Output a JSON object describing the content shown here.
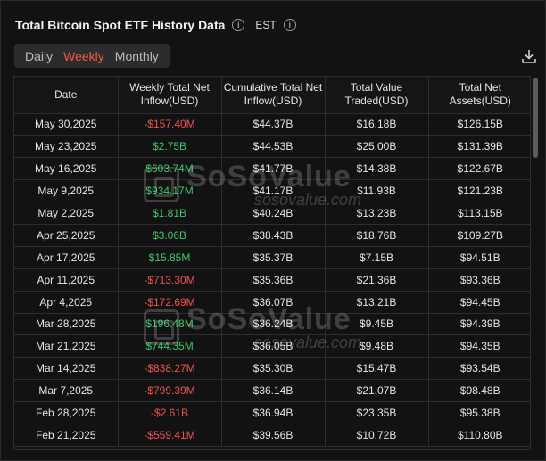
{
  "header": {
    "title": "Total Bitcoin Spot ETF History Data",
    "timezone": "EST"
  },
  "tabs": [
    {
      "label": "Daily",
      "active": false
    },
    {
      "label": "Weekly",
      "active": true
    },
    {
      "label": "Monthly",
      "active": false
    }
  ],
  "table": {
    "columns": [
      "Date",
      "Weekly Total Net Inflow(USD)",
      "Cumulative Total Net Inflow(USD)",
      "Total Value Traded(USD)",
      "Total Net Assets(USD)"
    ],
    "rows": [
      [
        "May 30,2025",
        "-$157.40M",
        "$44.37B",
        "$16.18B",
        "$126.15B"
      ],
      [
        "May 23,2025",
        "$2.75B",
        "$44.53B",
        "$25.00B",
        "$131.39B"
      ],
      [
        "May 16,2025",
        "$603.74M",
        "$41.77B",
        "$14.38B",
        "$122.67B"
      ],
      [
        "May 9,2025",
        "$934.17M",
        "$41.17B",
        "$11.93B",
        "$121.23B"
      ],
      [
        "May 2,2025",
        "$1.81B",
        "$40.24B",
        "$13.23B",
        "$113.15B"
      ],
      [
        "Apr 25,2025",
        "$3.06B",
        "$38.43B",
        "$18.76B",
        "$109.27B"
      ],
      [
        "Apr 17,2025",
        "$15.85M",
        "$35.37B",
        "$7.15B",
        "$94.51B"
      ],
      [
        "Apr 11,2025",
        "-$713.30M",
        "$35.36B",
        "$21.36B",
        "$93.36B"
      ],
      [
        "Apr 4,2025",
        "-$172.69M",
        "$36.07B",
        "$13.21B",
        "$94.45B"
      ],
      [
        "Mar 28,2025",
        "$196.48M",
        "$36.24B",
        "$9.45B",
        "$94.39B"
      ],
      [
        "Mar 21,2025",
        "$744.35M",
        "$36.05B",
        "$9.48B",
        "$94.35B"
      ],
      [
        "Mar 14,2025",
        "-$838.27M",
        "$35.30B",
        "$15.47B",
        "$93.54B"
      ],
      [
        "Mar 7,2025",
        "-$799.39M",
        "$36.14B",
        "$21.07B",
        "$98.48B"
      ],
      [
        "Feb 28,2025",
        "-$2.61B",
        "$36.94B",
        "$23.35B",
        "$95.38B"
      ],
      [
        "Feb 21,2025",
        "-$559.41M",
        "$39.56B",
        "$10.72B",
        "$110.80B"
      ]
    ]
  },
  "watermark": {
    "name": "SoSoValue",
    "url": "sosovalue.com"
  },
  "colors": {
    "accent": "#f05a3b",
    "negative": "#ef5350",
    "positive": "#3ec66b"
  },
  "icons": [
    "info-icon",
    "download-icon"
  ]
}
